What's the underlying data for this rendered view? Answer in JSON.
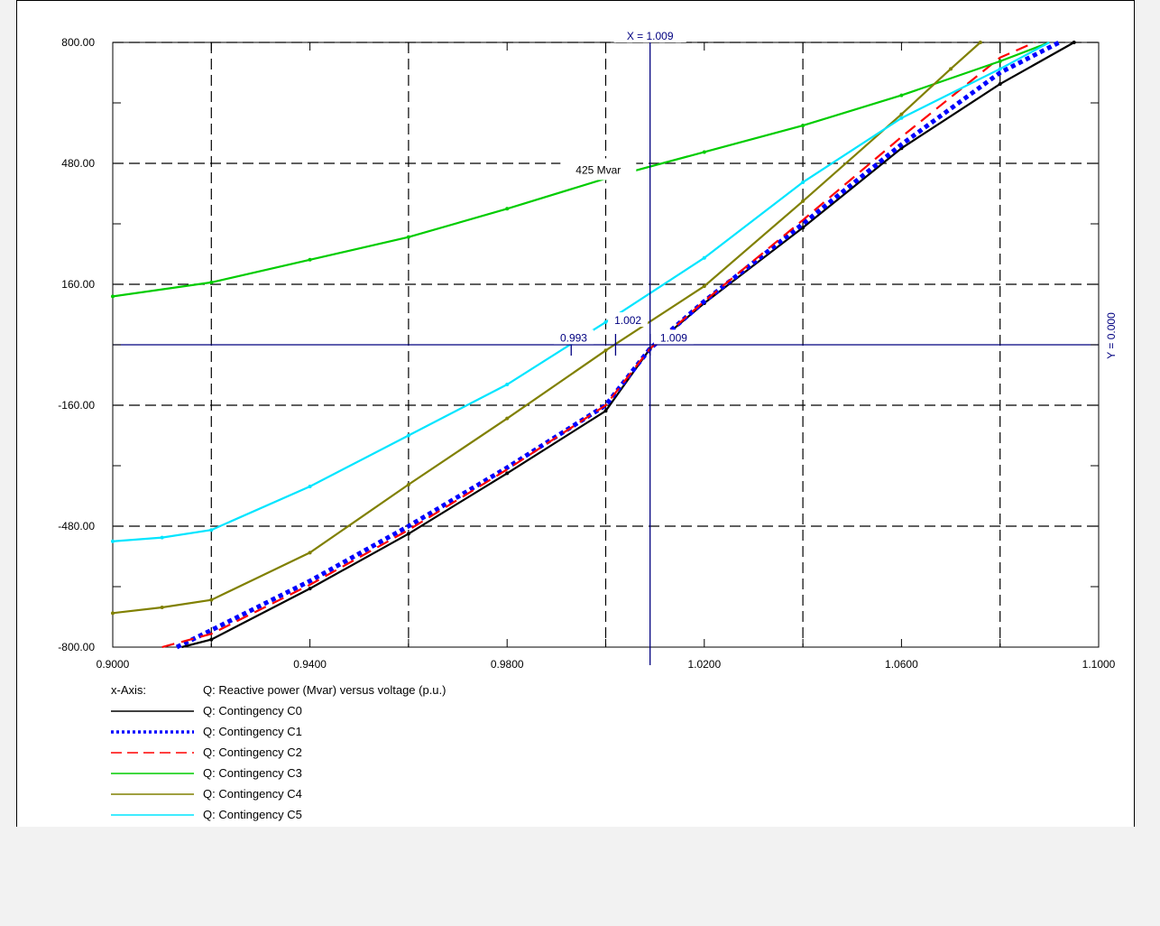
{
  "chart_data": {
    "type": "line",
    "xlabel": "",
    "ylabel": "",
    "xlim": [
      0.9,
      1.1
    ],
    "ylim": [
      -800,
      800
    ],
    "x_ticks": [
      "0.9000",
      "0.9400",
      "0.9800",
      "1.0200",
      "1.0600",
      "1.1000"
    ],
    "x_tick_values": [
      0.9,
      0.94,
      0.98,
      1.02,
      1.06,
      1.1
    ],
    "y_ticks": [
      "800.00",
      "480.00",
      "160.00",
      "-160.00",
      "-480.00",
      "-800.00"
    ],
    "y_tick_values": [
      800,
      480,
      160,
      -160,
      -480,
      -800
    ],
    "grid": true,
    "legend_position": "bottom-left",
    "legend_header": "x-Axis:",
    "legend_header_text": "Q: Reactive power (Mvar) versus voltage (p.u.)",
    "cursor": {
      "x_label": "X =  1.009",
      "y_label": "Y =  0.000",
      "x": 1.009,
      "y": 0.0
    },
    "annotations": [
      {
        "text": "425 Mvar",
        "x": 0.9985,
        "y": 460
      },
      {
        "text": "1.002",
        "x": 1.0045,
        "y": 62
      },
      {
        "text": "0.993",
        "x": 0.9935,
        "y": 16
      },
      {
        "text": "1.009",
        "x": 1.0138,
        "y": 16
      }
    ],
    "markers": [
      {
        "x": 0.993,
        "y": 0
      },
      {
        "x": 1.002,
        "y": 0
      },
      {
        "x": 1.009,
        "y": 0
      }
    ],
    "series": [
      {
        "name": "Q: Contingency C0",
        "color": "#000000",
        "dash": "solid",
        "x": [
          0.914,
          0.92,
          0.94,
          0.96,
          0.98,
          1.0,
          1.009,
          1.02,
          1.04,
          1.06,
          1.08,
          1.095
        ],
        "y": [
          -820,
          -780,
          -645,
          -500,
          -340,
          -175,
          -10,
          110,
          310,
          520,
          690,
          800
        ]
      },
      {
        "name": "Q: Contingency C1",
        "color": "#0000ff",
        "dash": "dotted",
        "x": [
          0.913,
          0.92,
          0.94,
          0.96,
          0.98,
          1.0,
          1.009,
          1.02,
          1.04,
          1.06,
          1.08,
          1.092
        ],
        "y": [
          -805,
          -755,
          -625,
          -480,
          -325,
          -160,
          -10,
          115,
          320,
          530,
          720,
          810
        ]
      },
      {
        "name": "Q: Contingency C2",
        "color": "#ff0000",
        "dash": "dashed",
        "x": [
          0.91,
          0.92,
          0.94,
          0.96,
          0.98,
          1.0,
          1.009,
          1.02,
          1.04,
          1.06,
          1.08,
          1.087
        ],
        "y": [
          -800,
          -765,
          -635,
          -490,
          -330,
          -160,
          -10,
          115,
          330,
          550,
          760,
          810
        ]
      },
      {
        "name": "Q: Contingency C3",
        "color": "#00cc00",
        "dash": "solid",
        "x": [
          0.9,
          0.92,
          0.94,
          0.96,
          0.98,
          1.0,
          1.02,
          1.04,
          1.06,
          1.08,
          1.09
        ],
        "y": [
          128,
          165,
          225,
          285,
          360,
          440,
          510,
          580,
          660,
          750,
          810
        ]
      },
      {
        "name": "Q: Contingency C4",
        "color": "#808000",
        "dash": "solid",
        "x": [
          0.9,
          0.91,
          0.92,
          0.94,
          0.96,
          0.98,
          1.0,
          1.02,
          1.04,
          1.06,
          1.07,
          1.076
        ],
        "y": [
          -710,
          -695,
          -675,
          -550,
          -370,
          -195,
          -15,
          155,
          380,
          610,
          730,
          800
        ]
      },
      {
        "name": "Q: Contingency C5",
        "color": "#00e5ff",
        "dash": "solid",
        "x": [
          0.9,
          0.91,
          0.92,
          0.94,
          0.96,
          0.98,
          1.0,
          1.02,
          1.04,
          1.06,
          1.08,
          1.09
        ],
        "y": [
          -520,
          -510,
          -490,
          -375,
          -240,
          -105,
          60,
          230,
          430,
          600,
          730,
          810
        ]
      }
    ]
  }
}
